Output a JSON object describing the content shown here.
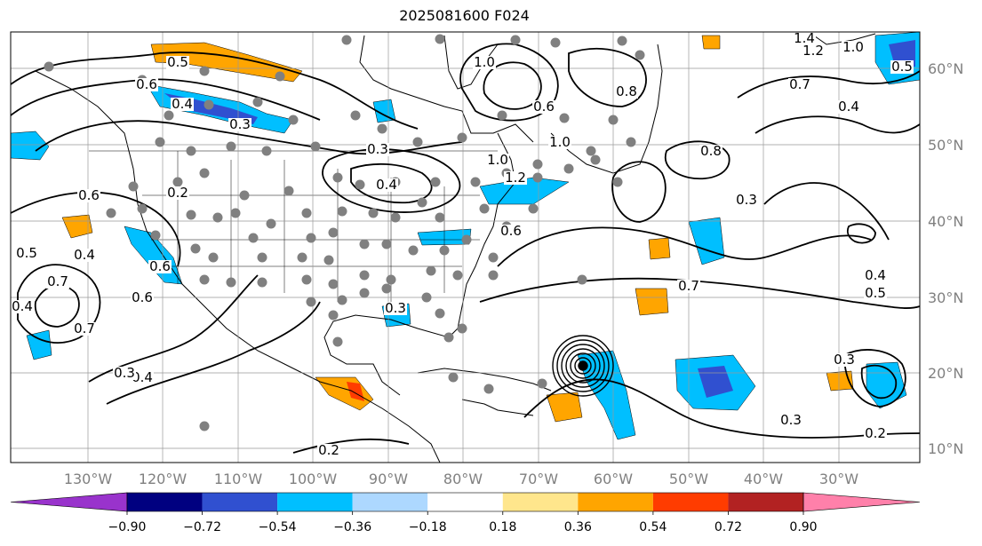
{
  "title": "2025081600 F024",
  "map": {
    "lon_labels": [
      "130°W",
      "120°W",
      "110°W",
      "100°W",
      "90°W",
      "80°W",
      "70°W",
      "60°W",
      "50°W",
      "40°W",
      "30°W"
    ],
    "lat_labels": [
      "60°N",
      "50°N",
      "40°N",
      "30°N",
      "20°N",
      "10°N"
    ],
    "contour_labels": [
      "0.5",
      "0.6",
      "0.4",
      "0.3",
      "0.3",
      "0.4",
      "0.2",
      "0.6",
      "0.5",
      "0.4",
      "0.7",
      "0.6",
      "0.4",
      "0.7",
      "0.4",
      "0.3",
      "0.3",
      "1.0",
      "0.6",
      "1.0",
      "1.2",
      "1.0",
      "0.8",
      "0.8",
      "1.4",
      "1.2",
      "1.0",
      "0.7",
      "0.5",
      "0.4",
      "0.7",
      "0.3",
      "0.4",
      "0.5",
      "0.3",
      "0.3",
      "0.2",
      "0.2",
      "0.6",
      "0.6"
    ],
    "cyclone_center_lonlat": [
      -65,
      20.5
    ]
  },
  "colorbar": {
    "tick_labels": [
      "−0.90",
      "−0.72",
      "−0.54",
      "−0.36",
      "−0.18",
      "0.18",
      "0.36",
      "0.54",
      "0.72",
      "0.90"
    ],
    "colors": [
      "#9933cc",
      "#000080",
      "#3050d0",
      "#00bfff",
      "#add8ff",
      "#ffffff",
      "#ffe68c",
      "#ffa500",
      "#ff3c00",
      "#b22222",
      "#ff80aa"
    ]
  }
}
